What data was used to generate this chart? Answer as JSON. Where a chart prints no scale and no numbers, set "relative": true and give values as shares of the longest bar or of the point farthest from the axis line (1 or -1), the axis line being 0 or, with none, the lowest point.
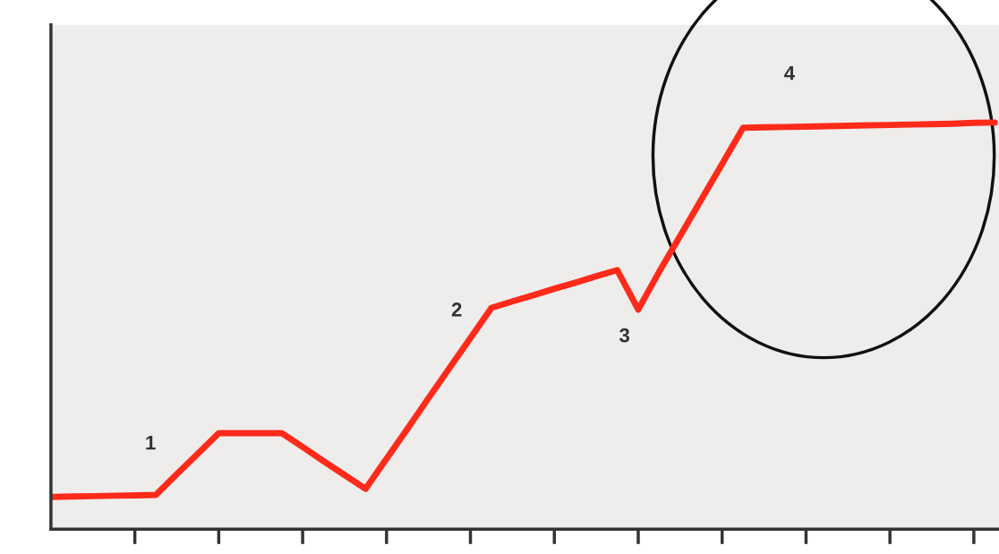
{
  "chart_data": {
    "type": "line",
    "relative": true,
    "categories": [
      null,
      null,
      null,
      null,
      null,
      null,
      null,
      null,
      null,
      null,
      null,
      null,
      null,
      null,
      null,
      null,
      null,
      null,
      null,
      null,
      null,
      null,
      null,
      null,
      null,
      null,
      null,
      null,
      null,
      null,
      null,
      null,
      null,
      null,
      null,
      null,
      null,
      null,
      null,
      null,
      null,
      null,
      null,
      null,
      null,
      null
    ],
    "series": [
      {
        "color": "#ff2a1a",
        "values": [
          0.079,
          0.08,
          0.081,
          0.082,
          0.083,
          0.084,
          0.135,
          0.185,
          0.236,
          0.236,
          0.236,
          0.236,
          0.202,
          0.167,
          0.133,
          0.099,
          0.173,
          0.247,
          0.322,
          0.396,
          0.47,
          0.544,
          0.56,
          0.575,
          0.591,
          0.606,
          0.622,
          0.637,
          0.54,
          0.633,
          0.721,
          0.81,
          0.898,
          0.987,
          0.988,
          0.989,
          0.99,
          0.991,
          0.992,
          0.993,
          0.994,
          0.995,
          0.996,
          0.997,
          0.999,
          1.0
        ]
      }
    ],
    "annotations": [
      "1",
      "2",
      "3",
      "4"
    ],
    "grid": false,
    "legend": false,
    "marker": "none",
    "line_style": "solid"
  }
}
